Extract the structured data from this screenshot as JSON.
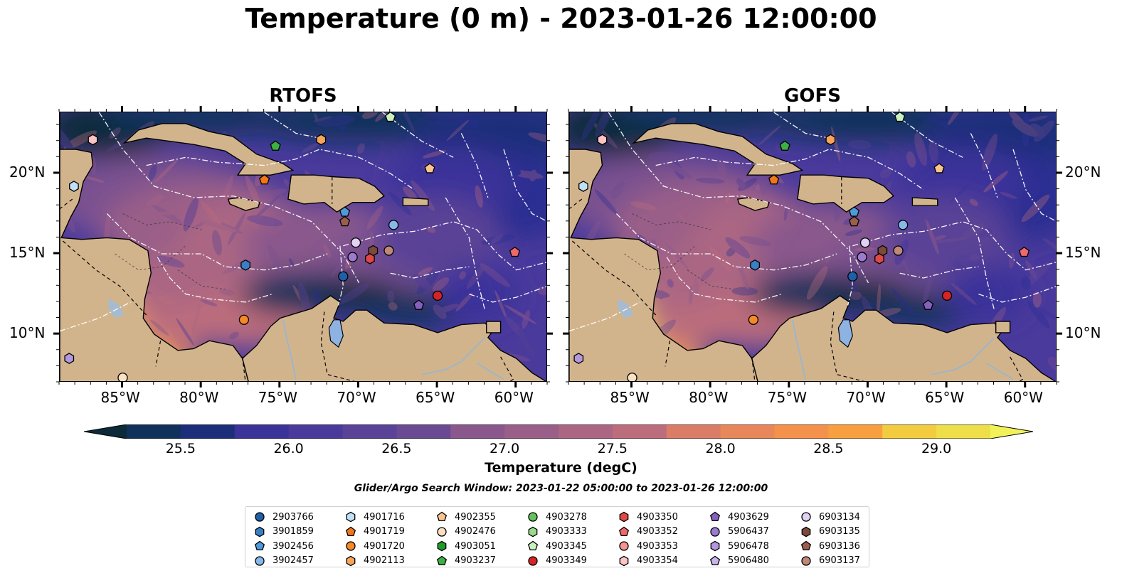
{
  "title": "Temperature (0 m) - 2023-01-26 12:00:00",
  "panels": [
    {
      "id": "rtofs",
      "title": "RTOFS"
    },
    {
      "id": "gofs",
      "title": "GOFS"
    }
  ],
  "axes": {
    "lon_ticks": [
      "85°W",
      "80°W",
      "75°W",
      "70°W",
      "65°W",
      "60°W"
    ],
    "lat_ticks": [
      "20°N",
      "15°N",
      "10°N"
    ]
  },
  "colorbar": {
    "label": "Temperature (degC)",
    "ticks": [
      "25.5",
      "26.0",
      "26.5",
      "27.0",
      "27.5",
      "28.0",
      "28.5",
      "29.0"
    ],
    "range": [
      25.25,
      29.25
    ],
    "colormap": [
      "#0b2a3a",
      "#10315a",
      "#1c2e7a",
      "#2a2f92",
      "#3b329a",
      "#4a3a9c",
      "#5a4296",
      "#6a4a92",
      "#7a5190",
      "#8a588c",
      "#9a5f88",
      "#ab6683",
      "#bc6d7c",
      "#cc7574",
      "#db7d66",
      "#e8875a",
      "#f4924c",
      "#f89f40",
      "#f7b43c",
      "#f2cc3e",
      "#eedf4a",
      "#f1f25a"
    ]
  },
  "search_window": "Glider/Argo Search Window: 2023-01-22 05:00:00 to 2023-01-26 12:00:00",
  "legend": [
    {
      "id": "2903766",
      "marker": "circle",
      "color": "#1f5fa8"
    },
    {
      "id": "3901859",
      "marker": "hexagon",
      "color": "#3a7fc4"
    },
    {
      "id": "3902456",
      "marker": "pentagon",
      "color": "#4f9ad8"
    },
    {
      "id": "3902457",
      "marker": "circle",
      "color": "#86b9ea"
    },
    {
      "id": "4901716",
      "marker": "hexagon",
      "color": "#bfe0f7"
    },
    {
      "id": "4901719",
      "marker": "pentagon",
      "color": "#f07818"
    },
    {
      "id": "4901720",
      "marker": "circle",
      "color": "#f58a24"
    },
    {
      "id": "4902113",
      "marker": "hexagon",
      "color": "#f8a55a"
    },
    {
      "id": "4902355",
      "marker": "pentagon",
      "color": "#f9c58e"
    },
    {
      "id": "4902476",
      "marker": "circle",
      "color": "#fde0c4"
    },
    {
      "id": "4903051",
      "marker": "hexagon",
      "color": "#1e9a28"
    },
    {
      "id": "4903237",
      "marker": "pentagon",
      "color": "#3cb043"
    },
    {
      "id": "4903278",
      "marker": "circle",
      "color": "#64c45c"
    },
    {
      "id": "4903333",
      "marker": "hexagon",
      "color": "#98dc8a"
    },
    {
      "id": "4903345",
      "marker": "pentagon",
      "color": "#c9f2c0"
    },
    {
      "id": "4903349",
      "marker": "circle",
      "color": "#d62424"
    },
    {
      "id": "4903350",
      "marker": "hexagon",
      "color": "#e04848"
    },
    {
      "id": "4903352",
      "marker": "pentagon",
      "color": "#ec6a6a"
    },
    {
      "id": "4903353",
      "marker": "circle",
      "color": "#f59494"
    },
    {
      "id": "4903354",
      "marker": "hexagon",
      "color": "#fcc4c4"
    },
    {
      "id": "4903629",
      "marker": "pentagon",
      "color": "#8560c0"
    },
    {
      "id": "5906437",
      "marker": "circle",
      "color": "#9c7ad0"
    },
    {
      "id": "5906478",
      "marker": "hexagon",
      "color": "#b498de"
    },
    {
      "id": "5906480",
      "marker": "pentagon",
      "color": "#c9b4ea"
    },
    {
      "id": "6903134",
      "marker": "circle",
      "color": "#e2d2f5"
    },
    {
      "id": "6903135",
      "marker": "hexagon",
      "color": "#7b4a3a"
    },
    {
      "id": "6903136",
      "marker": "pentagon",
      "color": "#9a5f4c"
    },
    {
      "id": "6903137",
      "marker": "circle",
      "color": "#c08878"
    }
  ],
  "profiles": [
    {
      "id": "4902476",
      "lon": -85.0,
      "lat": 7.3
    },
    {
      "id": "5906478",
      "lon": -88.4,
      "lat": 8.5
    },
    {
      "id": "4901716",
      "lon": -88.1,
      "lat": 19.2
    },
    {
      "id": "4903354",
      "lon": -86.9,
      "lat": 22.1
    },
    {
      "id": "3901859",
      "lon": -77.2,
      "lat": 14.3
    },
    {
      "id": "4901720",
      "lon": -77.3,
      "lat": 10.9
    },
    {
      "id": "4901719",
      "lon": -76.0,
      "lat": 19.6
    },
    {
      "id": "4903237",
      "lon": -75.3,
      "lat": 21.7
    },
    {
      "id": "4902113",
      "lon": -72.4,
      "lat": 22.1
    },
    {
      "id": "4903345",
      "lon": -68.0,
      "lat": 23.5
    },
    {
      "id": "3902456",
      "lon": -70.9,
      "lat": 17.6
    },
    {
      "id": "6903136",
      "lon": -70.9,
      "lat": 17.0
    },
    {
      "id": "6903134",
      "lon": -70.2,
      "lat": 15.7
    },
    {
      "id": "5906437",
      "lon": -70.4,
      "lat": 14.8
    },
    {
      "id": "2903766",
      "lon": -71.0,
      "lat": 13.6
    },
    {
      "id": "6903135",
      "lon": -69.1,
      "lat": 15.2
    },
    {
      "id": "6903137",
      "lon": -68.1,
      "lat": 15.2
    },
    {
      "id": "4903350",
      "lon": -69.3,
      "lat": 14.7
    },
    {
      "id": "3902457",
      "lon": -67.8,
      "lat": 16.8
    },
    {
      "id": "4902355",
      "lon": -65.5,
      "lat": 20.3
    },
    {
      "id": "4903349",
      "lon": -65.0,
      "lat": 12.4
    },
    {
      "id": "4903629",
      "lon": -66.2,
      "lat": 11.8
    },
    {
      "id": "4903352",
      "lon": -60.1,
      "lat": 15.1
    }
  ]
}
